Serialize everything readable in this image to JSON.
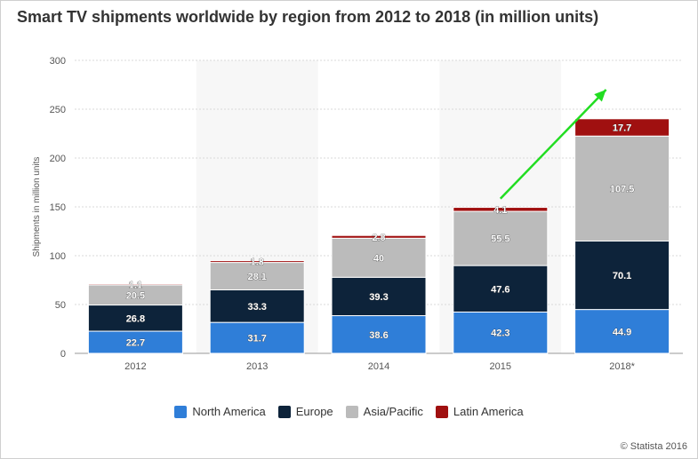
{
  "chart_data": {
    "type": "bar",
    "stacked": true,
    "title": "Smart TV shipments worldwide by region from 2012 to 2018 (in million units)",
    "ylabel": "Shipments in million units",
    "xlabel": "",
    "ylim": [
      0,
      300
    ],
    "yticks": [
      0,
      50,
      100,
      150,
      200,
      250,
      300
    ],
    "grid": true,
    "legend_position": "bottom",
    "categories": [
      "2012",
      "2013",
      "2014",
      "2015",
      "2018*"
    ],
    "series": [
      {
        "name": "North America",
        "color": "#2f7ed8",
        "values": [
          22.7,
          31.7,
          38.6,
          42.3,
          44.9
        ]
      },
      {
        "name": "Europe",
        "color": "#0d233a",
        "values": [
          26.8,
          33.3,
          39.3,
          47.6,
          70.1
        ]
      },
      {
        "name": "Asia/Pacific",
        "color": "#bbbbbb",
        "values": [
          20.5,
          28.1,
          40,
          55.5,
          107.5
        ]
      },
      {
        "name": "Latin America",
        "color": "#a01010",
        "values": [
          1.1,
          1.8,
          2.8,
          4.1,
          17.7
        ]
      }
    ],
    "value_labels": [
      [
        "22.7",
        "31.7",
        "38.6",
        "42.3",
        "44.9"
      ],
      [
        "26.8",
        "33.3",
        "39.3",
        "47.6",
        "70.1"
      ],
      [
        "20.5",
        "28.1",
        "40",
        "55.5",
        "107.5"
      ],
      [
        "1.1",
        "1.8",
        "2.8",
        "4.1",
        "17.7"
      ]
    ],
    "annotations": [
      {
        "type": "arrow",
        "color": "#22dd22",
        "from": {
          "x": "2015",
          "y": 162
        },
        "to": {
          "x": "2018*",
          "y": 270
        }
      }
    ]
  },
  "credit": "© Statista 2016"
}
